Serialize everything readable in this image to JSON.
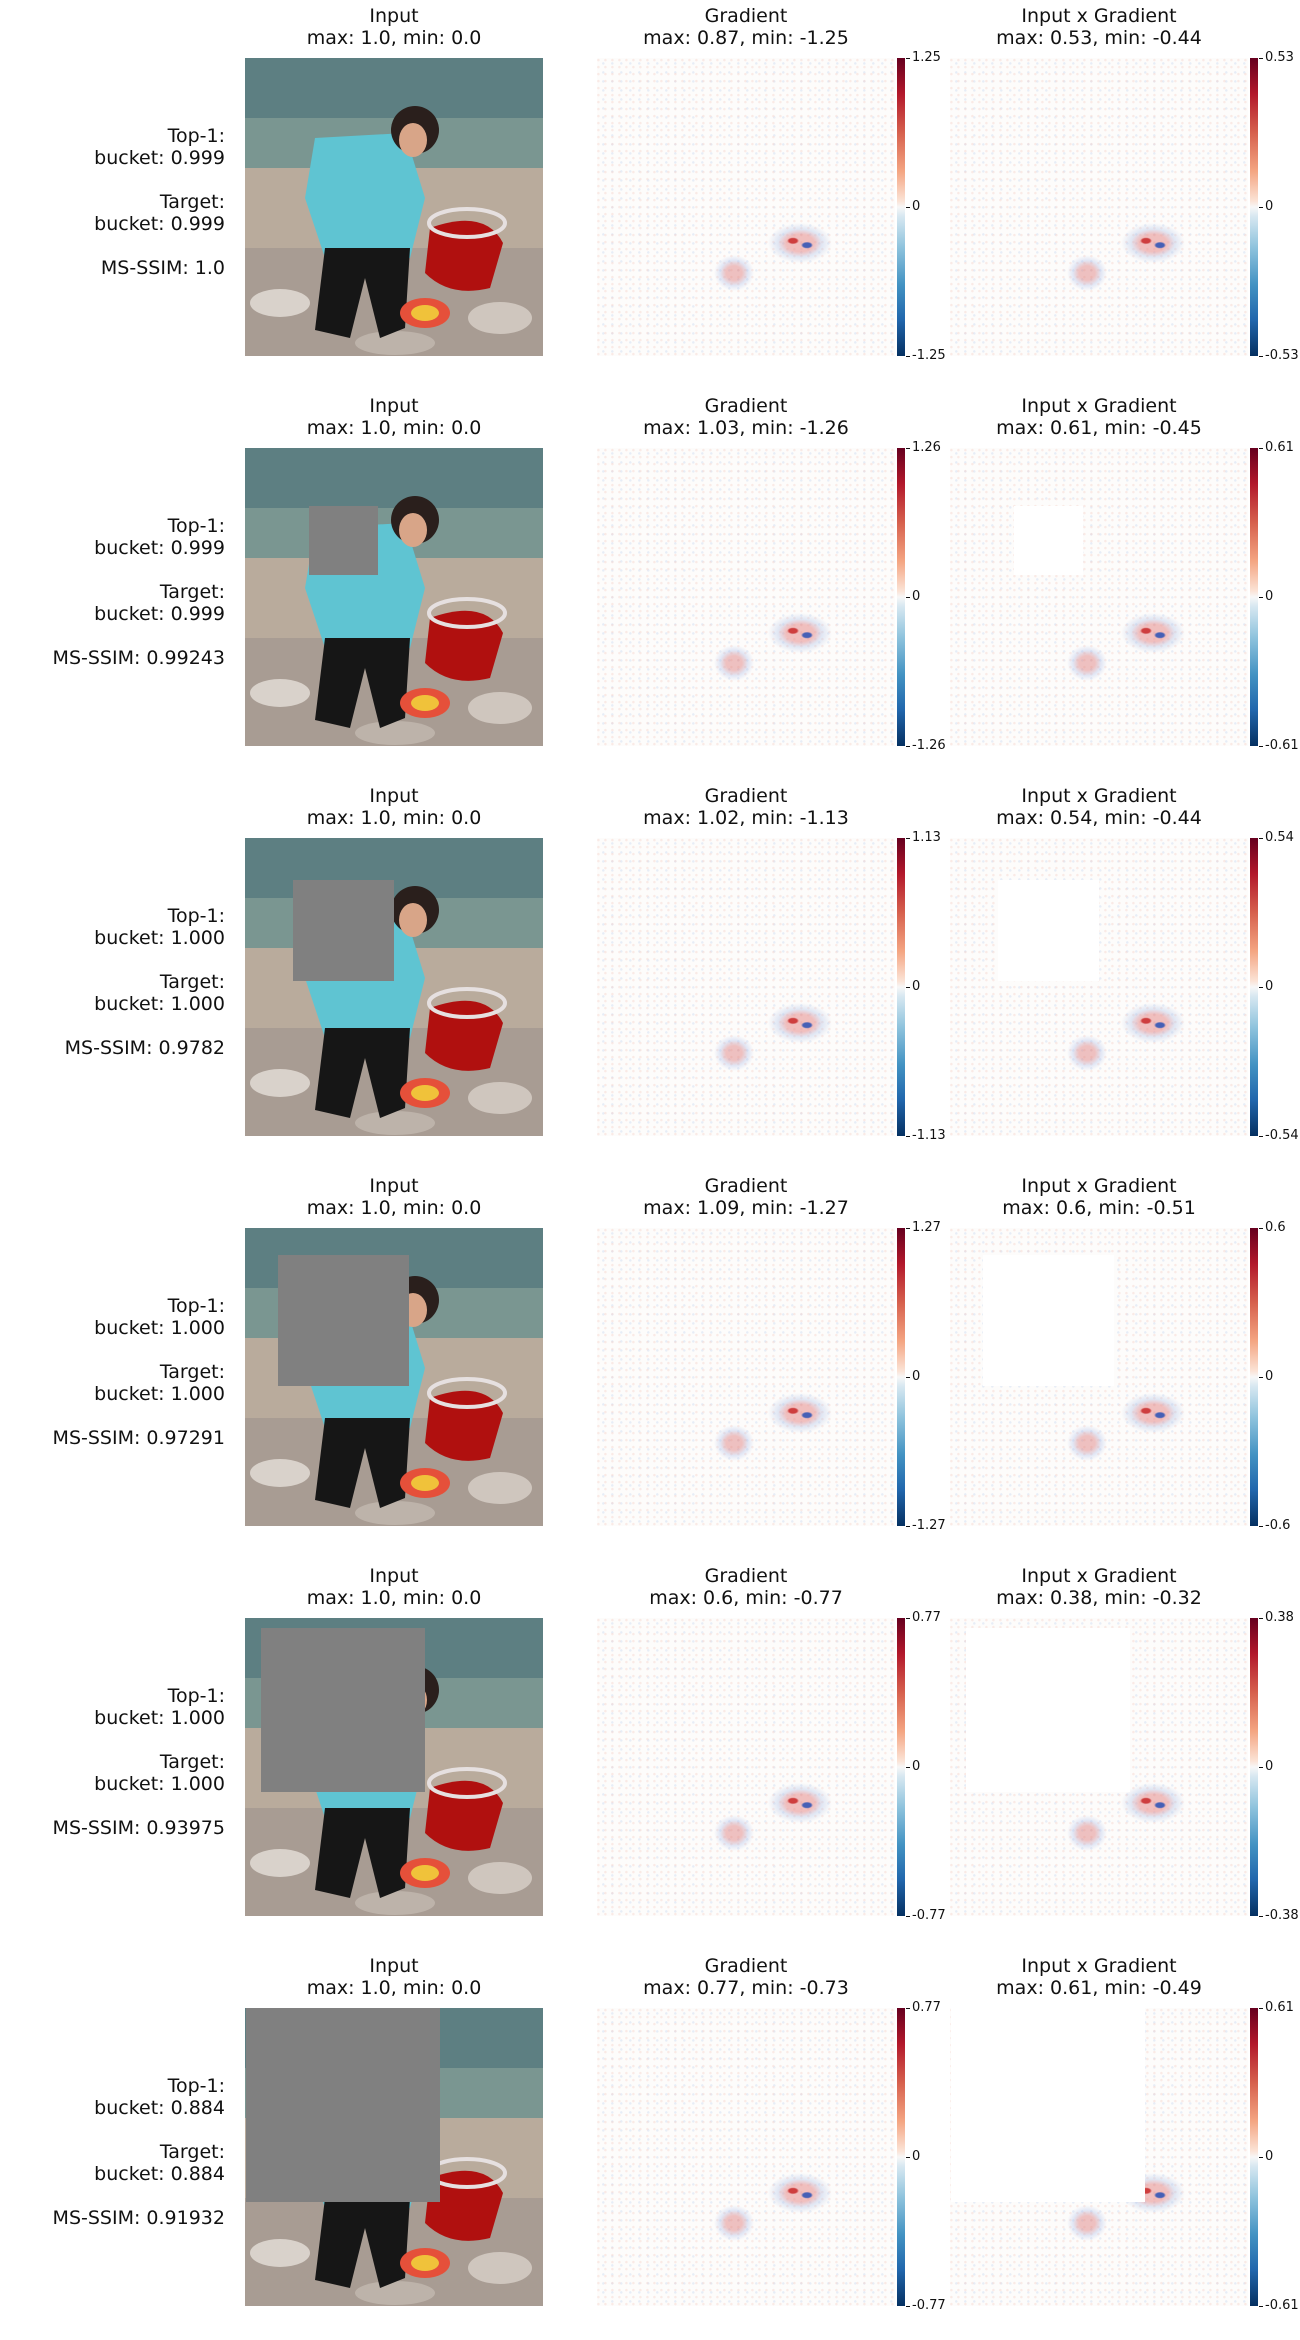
{
  "colorbar_colors": {
    "top": "#67001f",
    "mid": "#f7f7f7",
    "bottom": "#053061"
  },
  "chart_data": [
    {
      "type": "heatmap",
      "row": 1,
      "side_labels": [
        "Top-1:",
        "bucket: 0.999",
        "Target:",
        "bucket: 0.999",
        "MS-SSIM: 1.0"
      ],
      "occlusion_fraction": 0.0,
      "panels": [
        {
          "title": "Input",
          "subtitle": "max: 1.0, min: 0.0",
          "max": 1.0,
          "min": 0.0
        },
        {
          "title": "Gradient",
          "subtitle": "max: 0.87, min: -1.25",
          "max": 0.87,
          "min": -1.25,
          "cbar_ticks": [
            "1.25",
            "0",
            "-1.25"
          ]
        },
        {
          "title": "Input x Gradient",
          "subtitle": "max: 0.53, min: -0.44",
          "max": 0.53,
          "min": -0.44,
          "cbar_ticks": [
            "0.53",
            "0",
            "-0.53"
          ]
        }
      ]
    },
    {
      "type": "heatmap",
      "row": 2,
      "side_labels": [
        "Top-1:",
        "bucket: 0.999",
        "Target:",
        "bucket: 0.999",
        "MS-SSIM: 0.99243"
      ],
      "occlusion_fraction": 0.23,
      "panels": [
        {
          "title": "Input",
          "subtitle": "max: 1.0, min: 0.0",
          "max": 1.0,
          "min": 0.0
        },
        {
          "title": "Gradient",
          "subtitle": "max: 1.03, min: -1.26",
          "max": 1.03,
          "min": -1.26,
          "cbar_ticks": [
            "1.26",
            "0",
            "-1.26"
          ]
        },
        {
          "title": "Input x Gradient",
          "subtitle": "max: 0.61, min: -0.45",
          "max": 0.61,
          "min": -0.45,
          "cbar_ticks": [
            "0.61",
            "0",
            "-0.61"
          ]
        }
      ]
    },
    {
      "type": "heatmap",
      "row": 3,
      "side_labels": [
        "Top-1:",
        "bucket: 1.000",
        "Target:",
        "bucket: 1.000",
        "MS-SSIM: 0.9782"
      ],
      "occlusion_fraction": 0.34,
      "panels": [
        {
          "title": "Input",
          "subtitle": "max: 1.0, min: 0.0",
          "max": 1.0,
          "min": 0.0
        },
        {
          "title": "Gradient",
          "subtitle": "max: 1.02, min: -1.13",
          "max": 1.02,
          "min": -1.13,
          "cbar_ticks": [
            "1.13",
            "0",
            "-1.13"
          ]
        },
        {
          "title": "Input x Gradient",
          "subtitle": "max: 0.54, min: -0.44",
          "max": 0.54,
          "min": -0.44,
          "cbar_ticks": [
            "0.54",
            "0",
            "-0.54"
          ]
        }
      ]
    },
    {
      "type": "heatmap",
      "row": 4,
      "side_labels": [
        "Top-1:",
        "bucket: 1.000",
        "Target:",
        "bucket: 1.000",
        "MS-SSIM: 0.97291"
      ],
      "occlusion_fraction": 0.44,
      "panels": [
        {
          "title": "Input",
          "subtitle": "max: 1.0, min: 0.0",
          "max": 1.0,
          "min": 0.0
        },
        {
          "title": "Gradient",
          "subtitle": "max: 1.09, min: -1.27",
          "max": 1.09,
          "min": -1.27,
          "cbar_ticks": [
            "1.27",
            "0",
            "-1.27"
          ]
        },
        {
          "title": "Input x Gradient",
          "subtitle": "max: 0.6, min: -0.51",
          "max": 0.6,
          "min": -0.51,
          "cbar_ticks": [
            "0.6",
            "0",
            "-0.6"
          ]
        }
      ]
    },
    {
      "type": "heatmap",
      "row": 5,
      "side_labels": [
        "Top-1:",
        "bucket: 1.000",
        "Target:",
        "bucket: 1.000",
        "MS-SSIM: 0.93975"
      ],
      "occlusion_fraction": 0.55,
      "panels": [
        {
          "title": "Input",
          "subtitle": "max: 1.0, min: 0.0",
          "max": 1.0,
          "min": 0.0
        },
        {
          "title": "Gradient",
          "subtitle": "max: 0.6, min: -0.77",
          "max": 0.6,
          "min": -0.77,
          "cbar_ticks": [
            "0.77",
            "0",
            "-0.77"
          ]
        },
        {
          "title": "Input x Gradient",
          "subtitle": "max: 0.38, min: -0.32",
          "max": 0.38,
          "min": -0.32,
          "cbar_ticks": [
            "0.38",
            "0",
            "-0.38"
          ]
        }
      ]
    },
    {
      "type": "heatmap",
      "row": 6,
      "side_labels": [
        "Top-1:",
        "bucket: 0.884",
        "Target:",
        "bucket: 0.884",
        "MS-SSIM: 0.91932"
      ],
      "occlusion_fraction": 0.65,
      "panels": [
        {
          "title": "Input",
          "subtitle": "max: 1.0, min: 0.0",
          "max": 1.0,
          "min": 0.0
        },
        {
          "title": "Gradient",
          "subtitle": "max: 0.77, min: -0.73",
          "max": 0.77,
          "min": -0.73,
          "cbar_ticks": [
            "0.77",
            "0",
            "-0.77"
          ]
        },
        {
          "title": "Input x Gradient",
          "subtitle": "max: 0.61, min: -0.49",
          "max": 0.61,
          "min": -0.49,
          "cbar_ticks": [
            "0.61",
            "0",
            "-0.61"
          ]
        }
      ]
    }
  ]
}
